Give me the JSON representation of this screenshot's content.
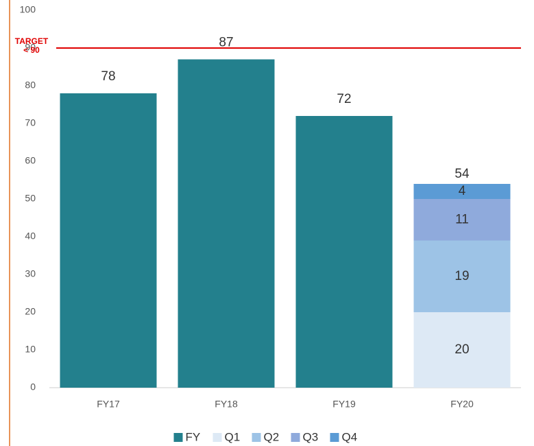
{
  "chart_data": {
    "type": "stacked_bar",
    "categories": [
      "FY17",
      "FY18",
      "FY19",
      "FY20"
    ],
    "series": [
      {
        "name": "FY",
        "color": "#23808d",
        "values": [
          78,
          87,
          72,
          null
        ]
      },
      {
        "name": "Q1",
        "color": "#dde9f5",
        "values": [
          null,
          null,
          null,
          20
        ]
      },
      {
        "name": "Q2",
        "color": "#9dc3e6",
        "values": [
          null,
          null,
          null,
          19
        ]
      },
      {
        "name": "Q3",
        "color": "#8faadc",
        "values": [
          null,
          null,
          null,
          11
        ]
      },
      {
        "name": "Q4",
        "color": "#5b9bd5",
        "values": [
          null,
          null,
          null,
          4
        ]
      }
    ],
    "totals": [
      null,
      null,
      null,
      54
    ],
    "target": 90,
    "target_label": [
      "TARGET",
      "< 90"
    ],
    "target_color": "#e00000",
    "ylim": [
      0,
      100
    ],
    "yticks": [
      0,
      10,
      20,
      30,
      40,
      50,
      60,
      70,
      80,
      90,
      100
    ],
    "grid": false,
    "legend": "bottom"
  }
}
